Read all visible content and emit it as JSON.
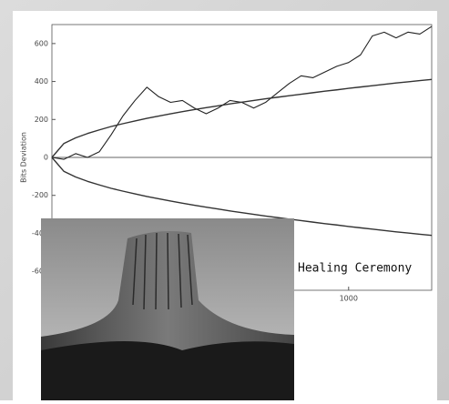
{
  "chart_data": {
    "type": "line",
    "y_label": "Bits Deviation",
    "annotation": "Healing Ceremony",
    "x": [
      0,
      40,
      80,
      120,
      160,
      200,
      240,
      280,
      320,
      360,
      400,
      440,
      480,
      520,
      560,
      600,
      640,
      680,
      720,
      760,
      800,
      840,
      880,
      920,
      960,
      1000,
      1040,
      1080,
      1120,
      1160,
      1200,
      1240,
      1280
    ],
    "series": [
      {
        "color": "#222222",
        "values": [
          0,
          -10,
          20,
          0,
          30,
          120,
          220,
          300,
          370,
          320,
          290,
          300,
          260,
          230,
          260,
          300,
          290,
          260,
          290,
          340,
          390,
          430,
          420,
          450,
          480,
          500,
          540,
          640,
          660,
          630,
          660,
          650,
          690
        ]
      },
      {
        "color": "#333333",
        "values": [
          0,
          73,
          103,
          126,
          145,
          163,
          178,
          192,
          206,
          218,
          230,
          241,
          252,
          262,
          272,
          282,
          291,
          300,
          309,
          317,
          325,
          333,
          341,
          349,
          356,
          364,
          371,
          378,
          385,
          392,
          398,
          405,
          411
        ]
      },
      {
        "color": "#333333",
        "values": [
          0,
          -73,
          -103,
          -126,
          -145,
          -163,
          -178,
          -192,
          -206,
          -218,
          -230,
          -241,
          -252,
          -262,
          -272,
          -282,
          -291,
          -300,
          -309,
          -317,
          -325,
          -333,
          -341,
          -349,
          -356,
          -364,
          -371,
          -378,
          -385,
          -392,
          -398,
          -405,
          -411
        ]
      }
    ],
    "xlim": [
      0,
      1280
    ],
    "xticks": [
      1000
    ],
    "ylim": [
      -700,
      700
    ],
    "yticks": [
      600,
      400,
      200,
      0,
      -200,
      -400,
      -600
    ]
  }
}
